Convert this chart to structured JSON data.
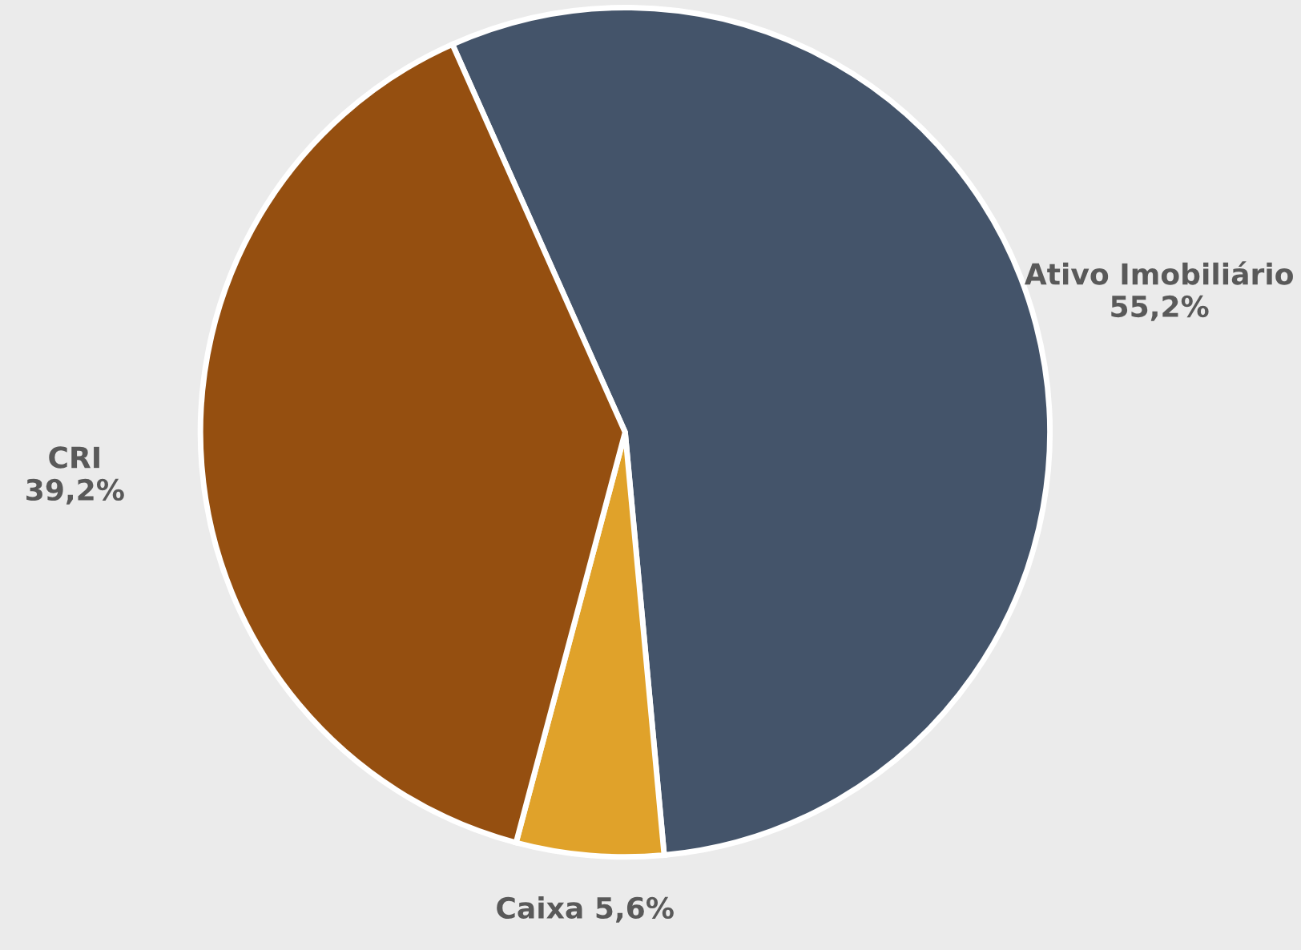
{
  "chart_data": {
    "type": "pie",
    "categories": [
      "Ativo Imobiliário",
      "Caixa",
      "CRI"
    ],
    "values": [
      55.2,
      5.6,
      39.2
    ],
    "value_labels": [
      "55,2%",
      "5,6%",
      "39,2%"
    ],
    "colors": [
      "#44546a",
      "#e0a22a",
      "#954f10"
    ]
  }
}
